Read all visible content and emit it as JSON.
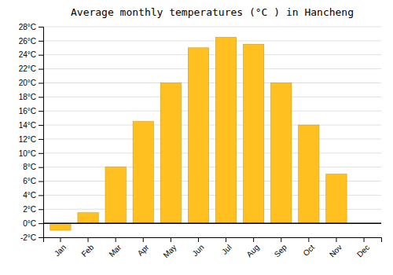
{
  "chart_data": {
    "type": "bar",
    "title": "Average monthly temperatures (°C ) in Hancheng",
    "categories": [
      "Jan",
      "Feb",
      "Mar",
      "Apr",
      "May",
      "Jun",
      "Jul",
      "Aug",
      "Sep",
      "Oct",
      "Nov",
      "Dec"
    ],
    "values": [
      -1.0,
      1.5,
      8.0,
      14.5,
      20.0,
      25.0,
      26.5,
      25.5,
      20.0,
      14.0,
      7.0,
      0.0
    ],
    "color": "#FFC020",
    "ylim": [
      -2,
      28
    ],
    "yticks": [
      {
        "value": -2,
        "label": "-2°C"
      },
      {
        "value": 0,
        "label": "0°C"
      },
      {
        "value": 2,
        "label": "2°C"
      },
      {
        "value": 4,
        "label": "4°C"
      },
      {
        "value": 6,
        "label": "6°C"
      },
      {
        "value": 8,
        "label": "8°C"
      },
      {
        "value": 10,
        "label": "10°C"
      },
      {
        "value": 12,
        "label": "12°C"
      },
      {
        "value": 14,
        "label": "14°C"
      },
      {
        "value": 16,
        "label": "16°C"
      },
      {
        "value": 18,
        "label": "18°C"
      },
      {
        "value": 20,
        "label": "20°C"
      },
      {
        "value": 22,
        "label": "22°C"
      },
      {
        "value": 24,
        "label": "24°C"
      },
      {
        "value": 26,
        "label": "26°C"
      },
      {
        "value": 28,
        "label": "28°C"
      }
    ],
    "grid": true
  }
}
